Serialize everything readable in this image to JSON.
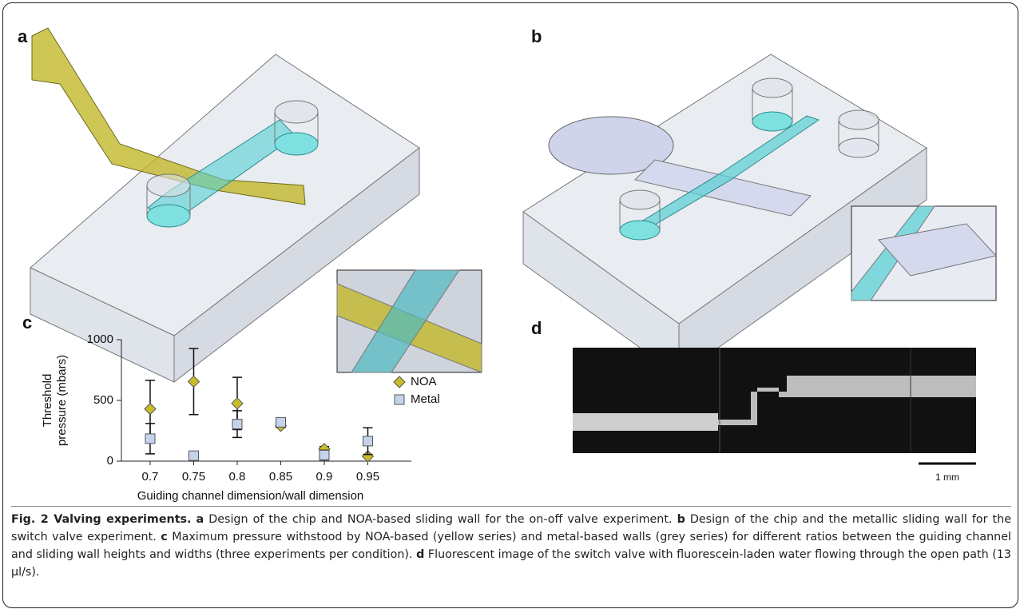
{
  "panels": [
    {
      "label": "a"
    },
    {
      "label": "b"
    },
    {
      "label": "c"
    },
    {
      "label": "d"
    }
  ],
  "scale_bar": "1 mm",
  "chart_data": {
    "type": "scatter",
    "x": [
      0.7,
      0.75,
      0.8,
      0.85,
      0.9,
      0.95
    ],
    "series": [
      {
        "name": "NOA",
        "color": "#c8bb2c",
        "values": [
          430,
          655,
          475,
          290,
          100,
          40
        ],
        "errors": [
          235,
          272,
          215,
          15,
          20,
          0
        ]
      },
      {
        "name": "Metal",
        "color": "#c5d3ea",
        "values": [
          185,
          45,
          305,
          320,
          50,
          165
        ],
        "errors": [
          125,
          0,
          110,
          10,
          40,
          110
        ]
      }
    ],
    "xlim": [
      0.667,
      1.0
    ],
    "xticks": [
      0.7,
      0.75,
      0.8,
      0.85,
      0.9,
      0.95
    ],
    "ylim": [
      0,
      1000
    ],
    "yticks": [
      0,
      500,
      1000
    ],
    "xlabel": "Guiding channel dimension/wall dimension",
    "ylabel": [
      "Threshold",
      "pressure (mbars)"
    ],
    "legend": "upper right",
    "grid": false
  },
  "caption": {
    "title": "Fig. 2 Valving experiments.",
    "parts": [
      {
        "label": "a",
        "text": "Design of the chip and NOA-based sliding wall for the on-off valve experiment."
      },
      {
        "label": "b",
        "text": "Design of the chip and the metallic sliding wall for the switch valve experiment."
      },
      {
        "label": "c",
        "text": "Maximum pressure withstood by NOA-based (yellow series) and metal-based walls (grey series) for different ratios between the guiding channel and sliding wall heights and widths (three experiments per condition)."
      },
      {
        "label": "d",
        "text": "Fluorescent image of the switch valve with fluorescein-laden water flowing through the open path (13 µl/s)."
      }
    ]
  }
}
